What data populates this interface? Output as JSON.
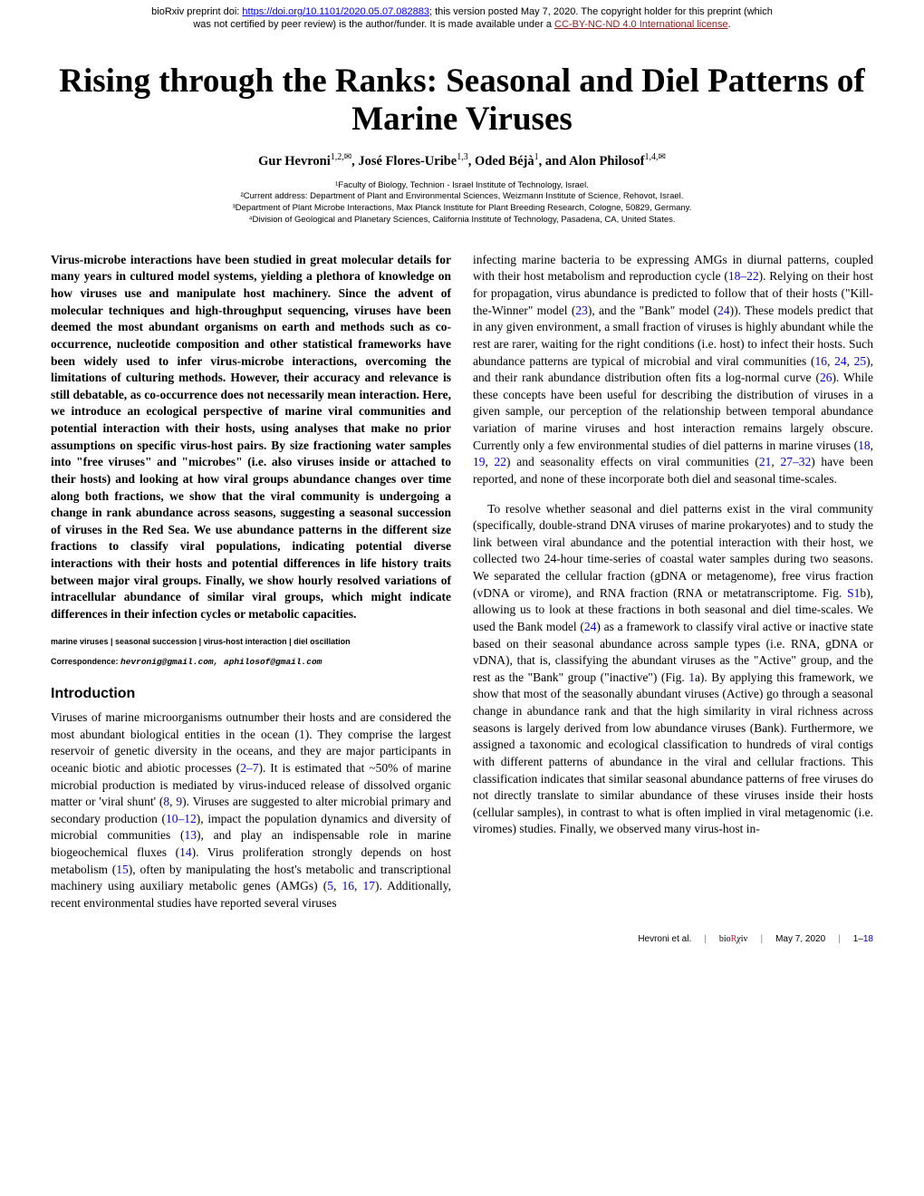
{
  "preprint": {
    "prefix": "bioRxiv preprint doi: ",
    "doi_url": "https://doi.org/10.1101/2020.05.07.082883",
    "mid1": "; this version posted May 7, 2020. The copyright holder for this preprint (which",
    "line2a": "was not certified by peer review) is the author/funder. It is made available under a ",
    "license_text": "CC-BY-NC-ND 4.0 International license",
    "period": "."
  },
  "title": "Rising through the Ranks: Seasonal and Diel Patterns of Marine Viruses",
  "authors": {
    "a1": "Gur Hevroni",
    "a1_sup": "1,2,✉",
    "a2": ", José Flores-Uribe",
    "a2_sup": "1,3",
    "a3": ", Oded Béjà",
    "a3_sup": "1",
    "a4": ", and Alon Philosof",
    "a4_sup": "1,4,✉"
  },
  "affiliations": {
    "l1": "¹Faculty of Biology, Technion - Israel Institute of Technology, Israel.",
    "l2": "²Current address: Department of Plant and Environmental Sciences, Weizmann Institute of Science, Rehovot, Israel.",
    "l3": "³Department of Plant Microbe Interactions, Max Planck Institute for Plant Breeding Research, Cologne, 50829, Germany.",
    "l4": "⁴Division of Geological and Planetary Sciences, California Institute of Technology, Pasadena, CA, United States."
  },
  "abstract": "Virus-microbe interactions have been studied in great molecular details for many years in cultured model systems, yielding a plethora of knowledge on how viruses use and manipulate host machinery. Since the advent of molecular techniques and high-throughput sequencing, viruses have been deemed the most abundant organisms on earth and methods such as co-occurrence, nucleotide composition and other statistical frameworks have been widely used to infer virus-microbe interactions, overcoming the limitations of culturing methods. However, their accuracy and relevance is still debatable, as co-occurrence does not necessarily mean interaction. Here, we introduce an ecological perspective of marine viral communities and potential interaction with their hosts, using analyses that make no prior assumptions on specific virus-host pairs. By size fractioning water samples into \"free viruses\" and \"microbes\" (i.e. also viruses inside or attached to their hosts) and looking at how viral groups abundance changes over time along both fractions, we show that the viral community is undergoing a change in rank abundance across seasons, suggesting a seasonal succession of viruses in the Red Sea. We use abundance patterns in the different size fractions to classify viral populations, indicating potential diverse interactions with their hosts and potential differences in life history traits between major viral groups. Finally, we show hourly resolved variations of intracellular abundance of similar viral groups, which might indicate differences in their infection cycles or metabolic capacities.",
  "keywords": "marine viruses | seasonal succession | virus-host interaction | diel oscillation",
  "correspondence_label": "Correspondence: ",
  "correspondence_emails": "hevronig@gmail.com, aphilosof@gmail.com",
  "intro_head": "Introduction",
  "intro_p1_a": "Viruses of marine microorganisms outnumber their hosts and are considered the most abundant biological entities in the ocean (",
  "ref1": "1",
  "intro_p1_b": "). They comprise the largest reservoir of genetic diversity in the oceans, and they are major participants in oceanic biotic and abiotic processes (",
  "ref2_7": "2–7",
  "intro_p1_c": "). It is estimated that ~50% of marine microbial production is mediated by virus-induced release of dissolved organic matter or 'viral shunt' (",
  "ref8": "8",
  "intro_p1_d": ", ",
  "ref9": "9",
  "intro_p1_e": "). Viruses are suggested to alter microbial primary and secondary production (",
  "ref10_12": "10–12",
  "intro_p1_f": "), impact the population dynamics and diversity of microbial communities (",
  "ref13": "13",
  "intro_p1_g": "), and play an indispensable role in marine biogeochemical fluxes (",
  "ref14": "14",
  "intro_p1_h": "). Virus proliferation strongly depends on host metabolism (",
  "ref15": "15",
  "intro_p1_i": "), often by manipulating the host's metabolic and transcriptional machinery using auxiliary metabolic genes (AMGs) (",
  "ref5": "5",
  "intro_p1_j": ", ",
  "ref16": "16",
  "intro_p1_k": ", ",
  "ref17": "17",
  "intro_p1_l": "). Additionally, recent environmental studies have reported several viruses",
  "col2_p1_a": "infecting marine bacteria to be expressing AMGs in diurnal patterns, coupled with their host metabolism and reproduction cycle (",
  "ref18_22": "18–22",
  "col2_p1_b": "). Relying on their host for propagation, virus abundance is predicted to follow that of their hosts (\"Kill-the-Winner\" model (",
  "ref23": "23",
  "col2_p1_c": "), and the \"Bank\" model (",
  "ref24": "24",
  "col2_p1_d": ")). These models predict that in any given environment, a small fraction of viruses is highly abundant while the rest are rarer, waiting for the right conditions (i.e. host) to infect their hosts. Such abundance patterns are typical of microbial and viral communities (",
  "ref16b": "16",
  "col2_p1_e": ", ",
  "ref24b": "24",
  "col2_p1_f": ", ",
  "ref25": "25",
  "col2_p1_g": "), and their rank abundance distribution often fits a log-normal curve (",
  "ref26": "26",
  "col2_p1_h": "). While these concepts have been useful for describing the distribution of viruses in a given sample, our perception of the relationship between temporal abundance variation of marine viruses and host interaction remains largely obscure. Currently only a few environmental studies of diel patterns in marine viruses (",
  "ref18": "18",
  "col2_p1_i": ", ",
  "ref19": "19",
  "col2_p1_j": ", ",
  "ref22": "22",
  "col2_p1_k": ") and seasonality effects on viral communities (",
  "ref21": "21",
  "col2_p1_l": ", ",
  "ref27_32": "27–32",
  "col2_p1_m": ") have been reported, and none of these incorporate both diel and seasonal time-scales.",
  "col2_p2_a": "To resolve whether seasonal and diel patterns exist in the viral community (specifically, double-strand DNA viruses of marine prokaryotes) and to study the link between viral abundance and the potential interaction with their host, we collected two 24-hour time-series of coastal water samples during two seasons. We separated the cellular fraction (gDNA or metagenome), free virus fraction (vDNA or virome), and RNA fraction (RNA or metatranscriptome. Fig. ",
  "refS1": "S1",
  "col2_p2_b": "b), allowing us to look at these fractions in both seasonal and diel time-scales. We used the Bank model (",
  "ref24c": "24",
  "col2_p2_c": ") as a framework to classify viral active or inactive state based on their seasonal abundance across sample types (i.e. RNA, gDNA or vDNA), that is, classifying the abundant viruses as the \"Active\" group, and the rest as the \"Bank\" group (\"inactive\") (Fig. ",
  "ref1a": "1",
  "col2_p2_d": "a). By applying this framework, we show that most of the seasonally abundant viruses (Active) go through a seasonal change in abundance rank and that the high similarity in viral richness across seasons is largely derived from low abundance viruses (Bank). Furthermore, we assigned a taxonomic and ecological classification to hundreds of viral contigs with different patterns of abundance in the viral and cellular fractions. This classification indicates that similar seasonal abundance patterns of free viruses do not directly translate to similar abundance of these viruses inside their hosts (cellular samples), in contrast to what is often implied in viral metagenomic (i.e. viromes) studies. Finally, we observed many virus-host in-",
  "footer": {
    "authors": "Hevroni et al.",
    "logo_bio": "bio",
    "logo_r": "R",
    "logo_chi": "χ",
    "logo_iv": "iv",
    "date": "May 7, 2020",
    "pages": "1–",
    "pages_end": "18"
  }
}
